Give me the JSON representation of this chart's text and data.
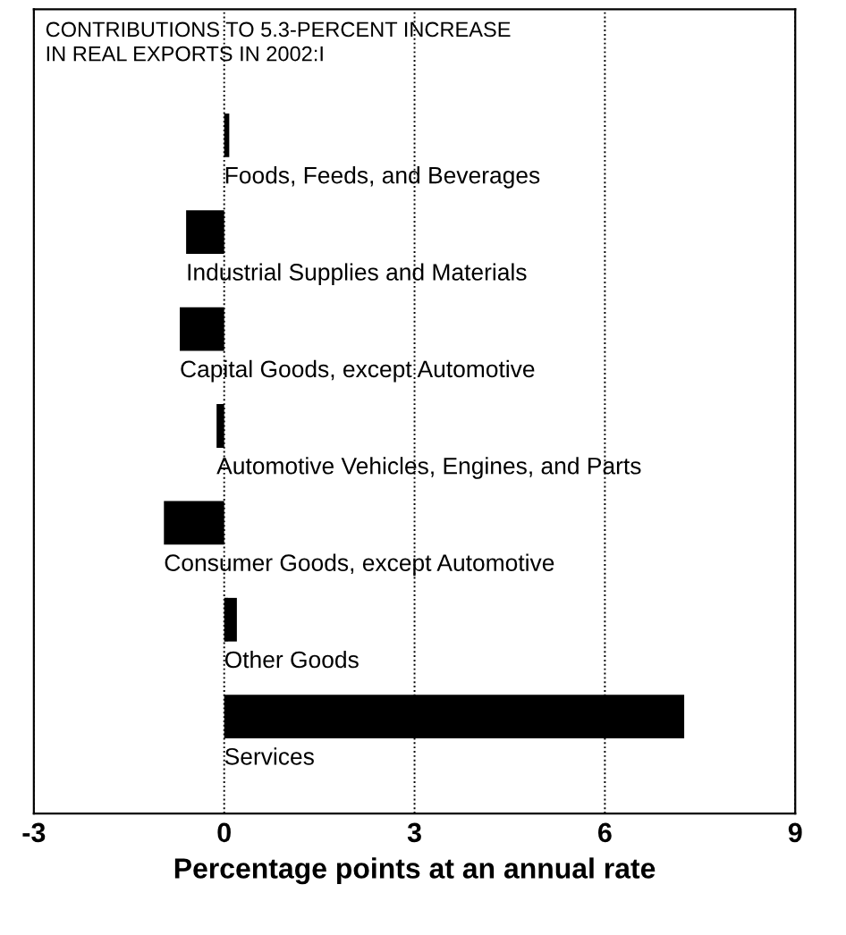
{
  "chart_data": {
    "type": "bar",
    "orientation": "horizontal",
    "title": "CONTRIBUTIONS TO 5.3-PERCENT INCREASE\nIN REAL EXPORTS IN 2002:I",
    "xlabel": "Percentage points at an annual rate",
    "categories": [
      "Foods, Feeds, and Beverages",
      "Industrial Supplies and Materials",
      "Capital Goods, except Automotive",
      "Automotive Vehicles, Engines, and Parts",
      "Consumer Goods, except Automotive",
      "Other Goods",
      "Services"
    ],
    "values": [
      0.08,
      -0.6,
      -0.7,
      -0.12,
      -0.95,
      0.2,
      7.25
    ],
    "color": "#000000",
    "xlim": [
      -3,
      9
    ],
    "xticks": [
      -3,
      0,
      3,
      6,
      9
    ],
    "grid": "x",
    "tick_labels": "x"
  }
}
